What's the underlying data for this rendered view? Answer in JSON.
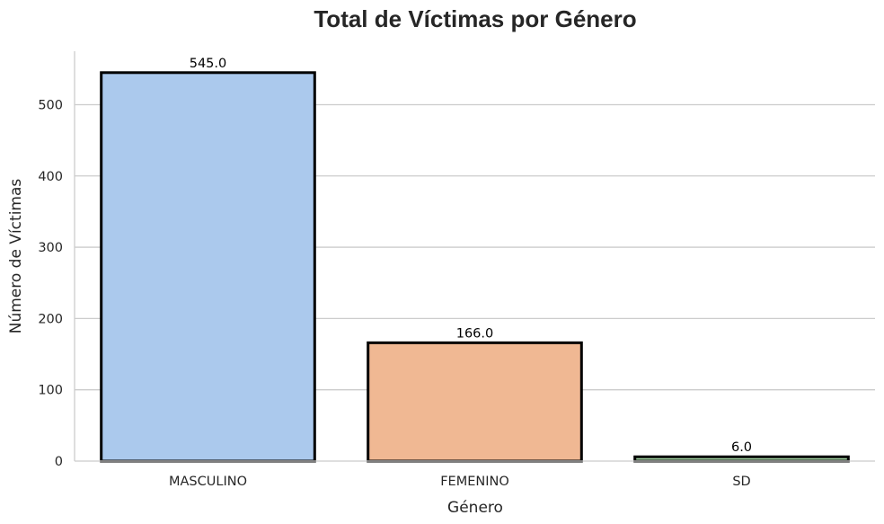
{
  "chart_data": {
    "type": "bar",
    "title": "Total de Víctimas por Género",
    "xlabel": "Género",
    "ylabel": "Número de Víctimas",
    "categories": [
      "MASCULINO",
      "FEMENINO",
      "SD"
    ],
    "values": [
      545,
      166,
      6
    ],
    "data_labels": [
      "545.0",
      "166.0",
      "6.0"
    ],
    "colors": [
      "#abc9ed",
      "#f0b893",
      "#a6d6a6"
    ],
    "edge_color": "#000000",
    "ylim": [
      0,
      575
    ],
    "yticks": [
      0,
      100,
      200,
      300,
      400,
      500
    ],
    "grid": "horizontal",
    "legend": "none"
  }
}
